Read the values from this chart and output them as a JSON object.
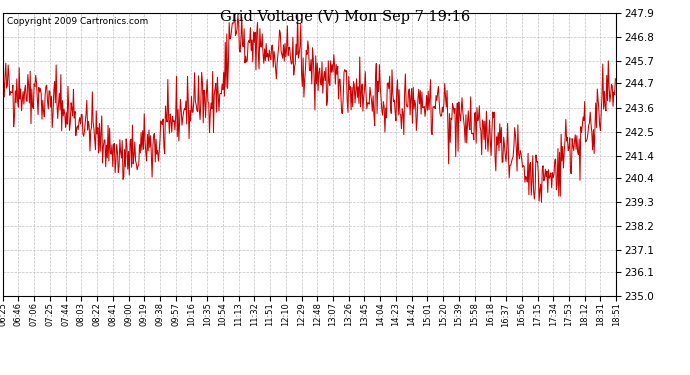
{
  "title": "Grid Voltage (V) Mon Sep 7 19:16",
  "copyright": "Copyright 2009 Cartronics.com",
  "line_color": "#cc0000",
  "background_color": "#ffffff",
  "plot_bg_color": "#ffffff",
  "grid_color": "#bbbbbb",
  "ylim": [
    235.0,
    247.9
  ],
  "yticks": [
    235.0,
    236.1,
    237.1,
    238.2,
    239.3,
    240.4,
    241.4,
    242.5,
    243.6,
    244.7,
    245.7,
    246.8,
    247.9
  ],
  "xtick_labels": [
    "06:25",
    "06:46",
    "07:06",
    "07:25",
    "07:44",
    "08:03",
    "08:22",
    "08:41",
    "09:00",
    "09:19",
    "09:38",
    "09:57",
    "10:16",
    "10:35",
    "10:54",
    "11:13",
    "11:32",
    "11:51",
    "12:10",
    "12:29",
    "12:48",
    "13:07",
    "13:26",
    "13:45",
    "14:04",
    "14:23",
    "14:42",
    "15:01",
    "15:20",
    "15:39",
    "15:58",
    "16:18",
    "16:37",
    "16:56",
    "17:15",
    "17:34",
    "17:53",
    "18:12",
    "18:31",
    "18:51"
  ],
  "seed": 42
}
